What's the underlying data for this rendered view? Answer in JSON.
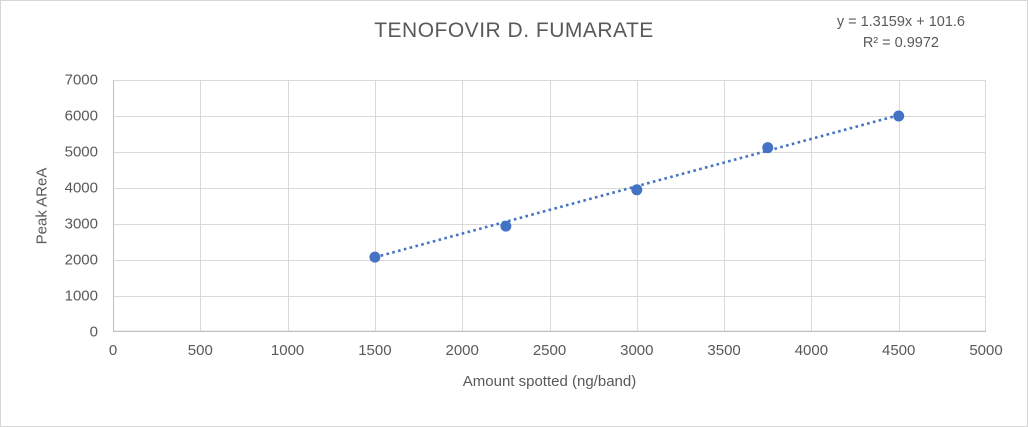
{
  "chart_data": {
    "type": "scatter",
    "title": "TENOFOVIR D. FUMARATE",
    "xlabel": "Amount spotted (ng/band)",
    "ylabel": "Peak AReA",
    "x": [
      1500,
      2250,
      3000,
      3750,
      4500
    ],
    "y": [
      2080,
      2940,
      3950,
      5120,
      6000
    ],
    "xlim": [
      0,
      5000
    ],
    "ylim": [
      0,
      7000
    ],
    "x_tick_step": 500,
    "y_tick_step": 1000,
    "grid": true,
    "legend": "none",
    "trendline": {
      "type": "linear",
      "slope": 1.3159,
      "intercept": 101.6,
      "style": "dotted",
      "equation_label": "y = 1.3159x + 101.6",
      "r2_label": "R² = 0.9972"
    },
    "colors": {
      "series": "#4472C4",
      "gridline": "#D9D9D9",
      "axis_line": "#BFBFBF",
      "text": "#595959"
    }
  }
}
